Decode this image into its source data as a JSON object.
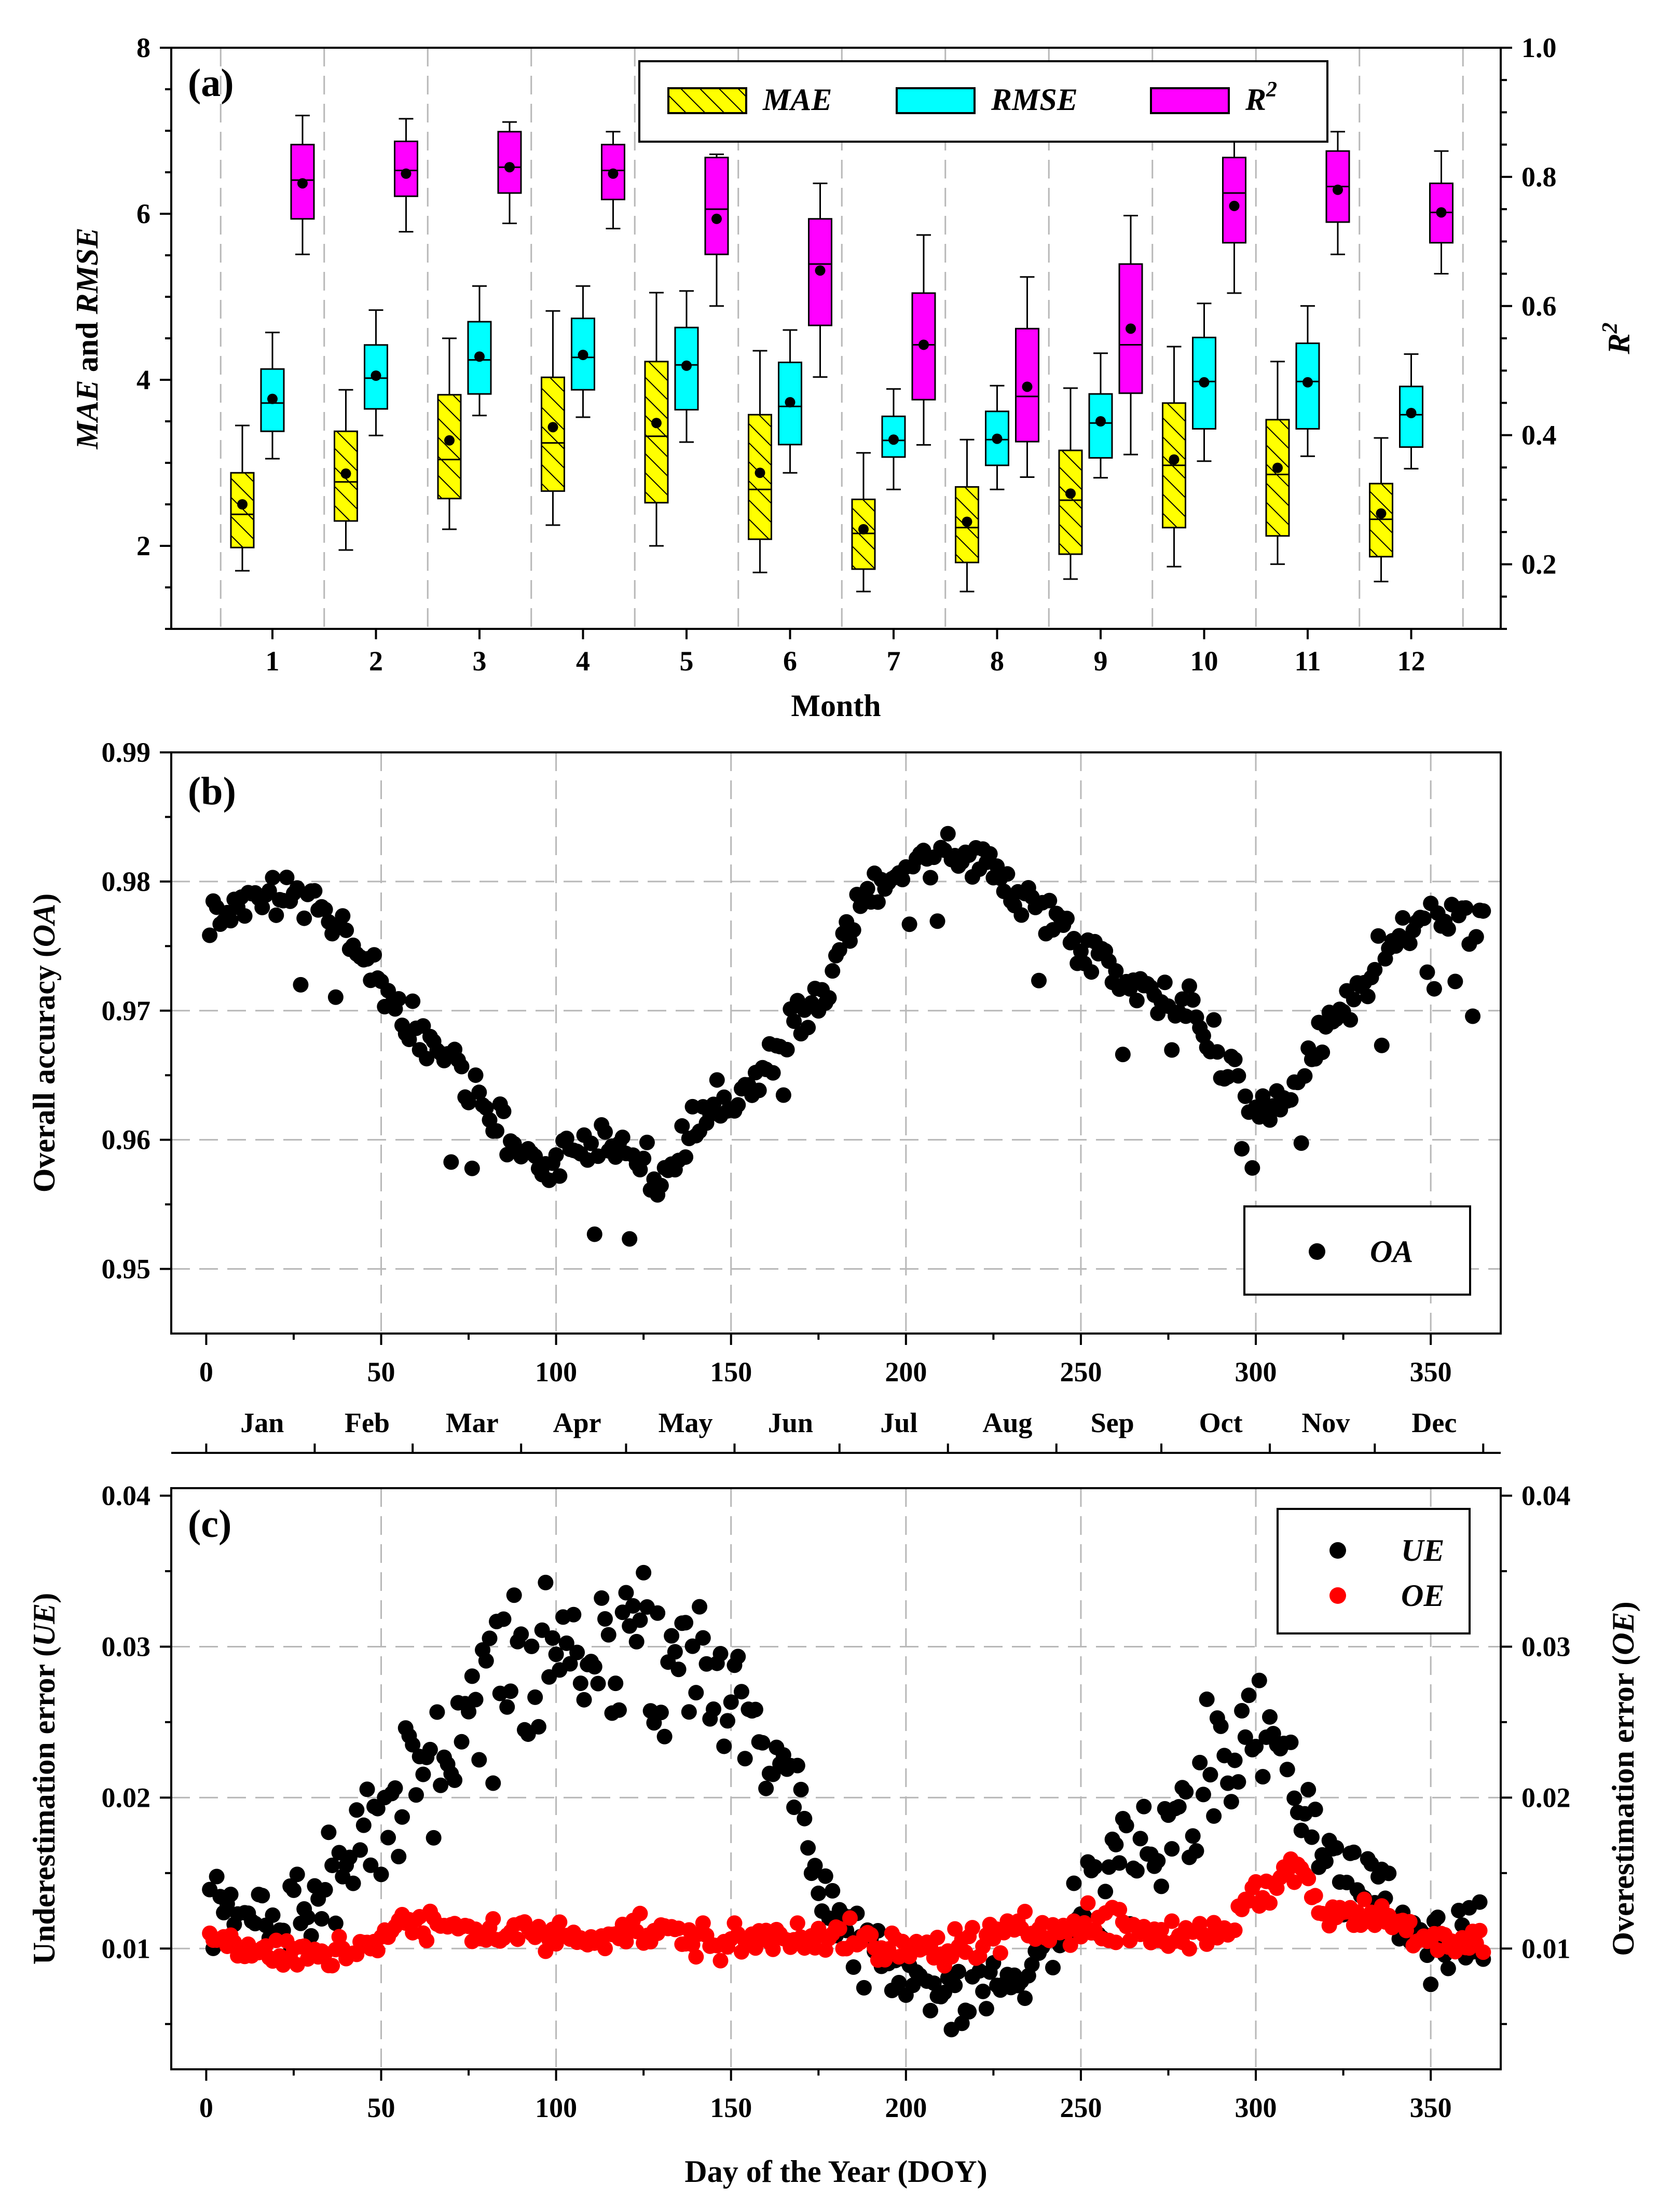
{
  "chart_data": [
    {
      "panel": "(a)",
      "type": "box",
      "xlabel": "Month",
      "ylabel": "MAE and RMSE",
      "ylabel_right": "R2",
      "categories": [
        "1",
        "2",
        "3",
        "4",
        "5",
        "6",
        "7",
        "8",
        "9",
        "10",
        "11",
        "12"
      ],
      "ylim": [
        1,
        8
      ],
      "yticks": [
        "2",
        "4",
        "6",
        "8"
      ],
      "ylim_right": [
        0.1,
        1.0
      ],
      "yticks_right": [
        "0.2",
        "0.4",
        "0.6",
        "0.8",
        "1.0"
      ],
      "series": [
        {
          "name": "MAE",
          "axis": "left",
          "color": "#ffff00",
          "hatch": true,
          "whisker_low": [
            1.7,
            1.95,
            2.2,
            2.25,
            2.0,
            1.68,
            1.45,
            1.45,
            1.6,
            1.75,
            1.78,
            1.57
          ],
          "q1": [
            1.98,
            2.3,
            2.57,
            2.66,
            2.52,
            2.08,
            1.72,
            1.8,
            1.9,
            2.22,
            2.12,
            1.87
          ],
          "median": [
            2.38,
            2.77,
            3.04,
            3.24,
            3.32,
            2.68,
            2.15,
            2.22,
            2.55,
            2.97,
            2.86,
            2.32
          ],
          "q3": [
            2.88,
            3.38,
            3.82,
            4.03,
            4.22,
            3.58,
            2.56,
            2.71,
            3.15,
            3.72,
            3.52,
            2.75
          ],
          "whisker_high": [
            3.45,
            3.88,
            4.5,
            4.83,
            5.05,
            4.35,
            3.12,
            3.28,
            3.9,
            4.4,
            4.22,
            3.3
          ],
          "mean": [
            2.5,
            2.87,
            3.27,
            3.43,
            3.48,
            2.88,
            2.2,
            2.29,
            2.63,
            3.04,
            2.94,
            2.39
          ]
        },
        {
          "name": "RMSE",
          "axis": "left",
          "color": "#00ffff",
          "hatch": false,
          "whisker_low": [
            3.05,
            3.33,
            3.57,
            3.55,
            3.25,
            2.88,
            2.68,
            2.68,
            2.82,
            3.02,
            3.08,
            2.93
          ],
          "q1": [
            3.38,
            3.65,
            3.83,
            3.88,
            3.64,
            3.22,
            3.07,
            2.97,
            3.06,
            3.41,
            3.41,
            3.19
          ],
          "median": [
            3.72,
            4.02,
            4.24,
            4.27,
            4.18,
            3.68,
            3.27,
            3.28,
            3.48,
            3.98,
            3.98,
            3.58
          ],
          "q3": [
            4.13,
            4.42,
            4.7,
            4.74,
            4.63,
            4.21,
            3.56,
            3.62,
            3.83,
            4.51,
            4.44,
            3.92
          ],
          "whisker_high": [
            4.57,
            4.84,
            5.13,
            5.13,
            5.07,
            4.6,
            3.89,
            3.93,
            4.32,
            4.92,
            4.89,
            4.31
          ],
          "mean": [
            3.77,
            4.05,
            4.28,
            4.3,
            4.17,
            3.73,
            3.28,
            3.29,
            3.5,
            3.97,
            3.97,
            3.6
          ]
        },
        {
          "name": "R2",
          "axis": "right",
          "color": "#ff00ff",
          "hatch": false,
          "whisker_low": [
            0.68,
            0.715,
            0.728,
            0.72,
            0.6,
            0.49,
            0.385,
            0.335,
            0.37,
            0.62,
            0.68,
            0.65
          ],
          "q1": [
            0.735,
            0.77,
            0.775,
            0.765,
            0.68,
            0.57,
            0.455,
            0.39,
            0.465,
            0.698,
            0.73,
            0.698
          ],
          "median": [
            0.795,
            0.81,
            0.815,
            0.81,
            0.75,
            0.665,
            0.54,
            0.46,
            0.54,
            0.775,
            0.785,
            0.745
          ],
          "q3": [
            0.85,
            0.855,
            0.87,
            0.85,
            0.83,
            0.735,
            0.62,
            0.565,
            0.665,
            0.83,
            0.84,
            0.79
          ],
          "whisker_high": [
            0.895,
            0.89,
            0.885,
            0.87,
            0.835,
            0.79,
            0.71,
            0.645,
            0.74,
            0.865,
            0.87,
            0.84
          ],
          "mean": [
            0.79,
            0.805,
            0.815,
            0.805,
            0.735,
            0.655,
            0.54,
            0.475,
            0.565,
            0.755,
            0.78,
            0.745
          ]
        }
      ],
      "legend": [
        "MAE",
        "RMSE",
        "R2"
      ],
      "legend_position": "top-right"
    },
    {
      "panel": "(b)",
      "type": "scatter",
      "xlabel": "",
      "ylabel": "Overall accuracy (OA)",
      "xlim": [
        -10,
        370
      ],
      "ylim": [
        0.945,
        0.99
      ],
      "xticks": [
        "0",
        "50",
        "100",
        "150",
        "200",
        "250",
        "300",
        "350"
      ],
      "yticks": [
        "0.95",
        "0.96",
        "0.97",
        "0.98",
        "0.99"
      ],
      "top_axis_months": [
        "Jan",
        "Feb",
        "Mar",
        "Apr",
        "May",
        "Jun",
        "Jul",
        "Aug",
        "Sep",
        "Oct",
        "Nov",
        "Dec"
      ],
      "top_axis_month_days": [
        16,
        46,
        76,
        106,
        137,
        167,
        198,
        229,
        259,
        290,
        320,
        351
      ],
      "series": [
        {
          "name": "OA",
          "color": "#000000",
          "x_start": 1,
          "x_step": 1,
          "anchors_x": [
            1,
            10,
            25,
            40,
            55,
            70,
            80,
            95,
            105,
            115,
            130,
            140,
            150,
            160,
            175,
            190,
            205,
            220,
            235,
            250,
            265,
            280,
            290,
            300,
            310,
            320,
            335,
            350,
            365
          ],
          "anchors_y": [
            0.977,
            0.9785,
            0.979,
            0.976,
            0.9695,
            0.967,
            0.9625,
            0.958,
            0.9595,
            0.9605,
            0.957,
            0.9605,
            0.9635,
            0.9655,
            0.971,
            0.9795,
            0.982,
            0.982,
            0.9785,
            0.9755,
            0.972,
            0.971,
            0.966,
            0.9625,
            0.9635,
            0.969,
            0.9735,
            0.978,
            0.977
          ]
        }
      ],
      "legend": [
        "OA"
      ],
      "legend_position": "bottom-right"
    },
    {
      "panel": "(c)",
      "type": "scatter",
      "xlabel": "Day of the Year (DOY)",
      "ylabel": "Underestimation error (UE)",
      "ylabel_right": "Overestimation error (OE)",
      "xlim": [
        -10,
        370
      ],
      "ylim": [
        0.002,
        0.0405
      ],
      "xticks": [
        "0",
        "50",
        "100",
        "150",
        "200",
        "250",
        "300",
        "350"
      ],
      "yticks": [
        "0.01",
        "0.02",
        "0.03",
        "0.04"
      ],
      "yticks_right": [
        "0.01",
        "0.02",
        "0.03",
        "0.04"
      ],
      "series": [
        {
          "name": "UE",
          "color": "#000000",
          "x_start": 1,
          "x_step": 1,
          "anchors_x": [
            1,
            20,
            35,
            50,
            60,
            70,
            80,
            90,
            100,
            110,
            120,
            130,
            140,
            150,
            160,
            170,
            180,
            190,
            200,
            210,
            220,
            230,
            240,
            250,
            260,
            270,
            280,
            290,
            300,
            310,
            320,
            330,
            340,
            350,
            365
          ],
          "anchors_y": [
            0.012,
            0.0115,
            0.015,
            0.019,
            0.0215,
            0.023,
            0.0275,
            0.029,
            0.03,
            0.0295,
            0.0295,
            0.0305,
            0.029,
            0.0265,
            0.024,
            0.019,
            0.0125,
            0.0095,
            0.008,
            0.0072,
            0.007,
            0.0078,
            0.0098,
            0.0128,
            0.015,
            0.017,
            0.0185,
            0.0225,
            0.024,
            0.0215,
            0.0165,
            0.0145,
            0.0125,
            0.0115,
            0.011
          ]
        },
        {
          "name": "OE",
          "color": "#ff0000",
          "x_start": 1,
          "x_step": 1,
          "anchors_x": [
            1,
            25,
            40,
            55,
            75,
            100,
            125,
            150,
            175,
            190,
            200,
            215,
            230,
            245,
            260,
            275,
            290,
            300,
            312,
            320,
            335,
            350,
            365
          ],
          "anchors_y": [
            0.0105,
            0.0093,
            0.0098,
            0.0115,
            0.0113,
            0.0108,
            0.0112,
            0.0103,
            0.0112,
            0.0101,
            0.0098,
            0.0102,
            0.0108,
            0.0118,
            0.0115,
            0.0108,
            0.0112,
            0.0135,
            0.0155,
            0.0123,
            0.0122,
            0.0108,
            0.0105
          ]
        }
      ],
      "legend": [
        "UE",
        "OE"
      ],
      "legend_position": "top-right"
    }
  ],
  "panel_a": {
    "label": "(a)",
    "ylabel_pre": "MAE",
    "ylabel_mid": " and ",
    "ylabel_post": "RMSE",
    "ylabel_right_base": "R",
    "ylabel_right_sup": "2",
    "xlabel": "Month",
    "legend": {
      "mae": "MAE",
      "rmse": "RMSE",
      "r2_base": "R",
      "r2_sup": "2"
    }
  },
  "panel_b": {
    "label": "(b)",
    "ylabel_pre": "Overall accuracy (",
    "ylabel_italic": "OA",
    "ylabel_post": ")",
    "legend": {
      "oa": "OA"
    }
  },
  "panel_c": {
    "label": "(c)",
    "ylabel_pre": "Underestimation error (",
    "ylabel_italic": "UE",
    "ylabel_post": ")",
    "ylabel_right_pre": "Overestimation error (",
    "ylabel_right_italic": "OE",
    "ylabel_right_post": ")",
    "xlabel": "Day of the Year (DOY)",
    "legend": {
      "ue": "UE",
      "oe": "OE"
    }
  },
  "colors": {
    "mae": "#ffff00",
    "rmse": "#00ffff",
    "r2": "#ff00ff",
    "oa": "#000000",
    "ue": "#000000",
    "oe": "#ff0000",
    "grid": "#b8b8b8"
  }
}
